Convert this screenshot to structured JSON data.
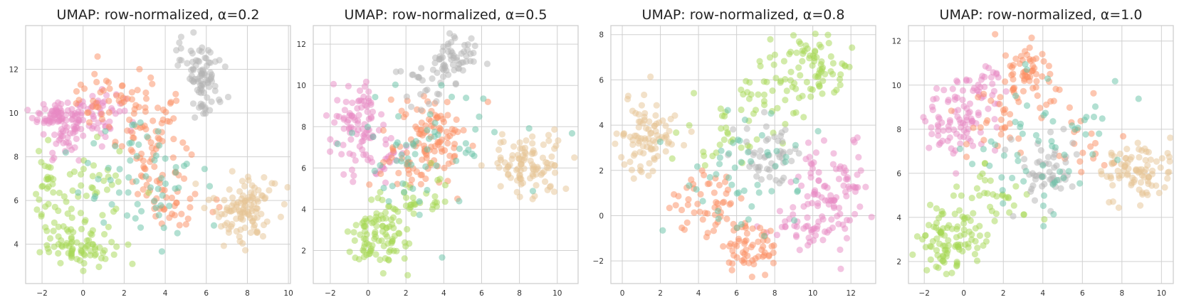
{
  "chart_data": [
    {
      "type": "scatter",
      "title": "UMAP: row-normalized, α=0.2",
      "xlabel": "",
      "ylabel": "",
      "xlim": [
        -2.8,
        10.1
      ],
      "ylim": [
        2.2,
        14.0
      ],
      "xticks": [
        -2,
        0,
        2,
        4,
        6,
        8,
        10
      ],
      "yticks": [
        4,
        6,
        8,
        10,
        12
      ],
      "grid": true,
      "series": [
        {
          "name": "pink",
          "color": "#e78ac3",
          "clusters": [
            {
              "cx": -1.2,
              "cy": 9.9,
              "sx": 0.6,
              "sy": 0.4,
              "n": 70
            },
            {
              "cx": 0.6,
              "cy": 10.0,
              "sx": 0.7,
              "sy": 0.5,
              "n": 55
            },
            {
              "cx": -0.9,
              "cy": 8.8,
              "sx": 0.5,
              "sy": 0.5,
              "n": 30
            }
          ]
        },
        {
          "name": "orange",
          "color": "#fc8d62",
          "clusters": [
            {
              "cx": 3.4,
              "cy": 8.6,
              "sx": 0.9,
              "sy": 1.3,
              "n": 80
            },
            {
              "cx": 1.2,
              "cy": 10.5,
              "sx": 0.9,
              "sy": 0.7,
              "n": 40
            },
            {
              "cx": 4.8,
              "cy": 6.0,
              "sx": 0.8,
              "sy": 0.7,
              "n": 30
            }
          ]
        },
        {
          "name": "green",
          "color": "#a6d854",
          "clusters": [
            {
              "cx": -0.3,
              "cy": 4.0,
              "sx": 0.9,
              "sy": 0.5,
              "n": 80
            },
            {
              "cx": -1.8,
              "cy": 6.2,
              "sx": 0.3,
              "sy": 1.0,
              "n": 25
            },
            {
              "cx": 0.5,
              "cy": 6.5,
              "sx": 1.0,
              "sy": 1.0,
              "n": 40
            }
          ]
        },
        {
          "name": "tan",
          "color": "#e5c494",
          "clusters": [
            {
              "cx": 7.8,
              "cy": 5.7,
              "sx": 0.8,
              "sy": 0.8,
              "n": 110
            }
          ]
        },
        {
          "name": "gray",
          "color": "#b3b3b3",
          "clusters": [
            {
              "cx": 5.6,
              "cy": 12.2,
              "sx": 0.5,
              "sy": 0.7,
              "n": 60
            },
            {
              "cx": 6.0,
              "cy": 10.8,
              "sx": 0.4,
              "sy": 0.6,
              "n": 30
            }
          ]
        },
        {
          "name": "teal",
          "color": "#66c2a5",
          "clusters": [
            {
              "cx": 3.0,
              "cy": 7.0,
              "sx": 1.8,
              "sy": 1.6,
              "n": 60
            }
          ]
        }
      ]
    },
    {
      "type": "scatter",
      "title": "UMAP: row-normalized, α=0.5",
      "xlabel": "",
      "ylabel": "",
      "xlim": [
        -2.9,
        11.1
      ],
      "ylim": [
        0.4,
        12.9
      ],
      "xticks": [
        -2,
        0,
        2,
        4,
        6,
        8,
        10
      ],
      "yticks": [
        2,
        4,
        6,
        8,
        10,
        12
      ],
      "grid": true,
      "series": [
        {
          "name": "pink",
          "color": "#e78ac3",
          "clusters": [
            {
              "cx": -0.5,
              "cy": 8.3,
              "sx": 0.7,
              "sy": 0.8,
              "n": 80
            },
            {
              "cx": 0.5,
              "cy": 6.5,
              "sx": 0.8,
              "sy": 0.6,
              "n": 30
            }
          ]
        },
        {
          "name": "orange",
          "color": "#fc8d62",
          "clusters": [
            {
              "cx": 3.6,
              "cy": 7.7,
              "sx": 0.9,
              "sy": 0.9,
              "n": 80
            },
            {
              "cx": 2.0,
              "cy": 6.4,
              "sx": 1.0,
              "sy": 0.8,
              "n": 40
            }
          ]
        },
        {
          "name": "green",
          "color": "#a6d854",
          "clusters": [
            {
              "cx": 0.5,
              "cy": 2.7,
              "sx": 0.8,
              "sy": 0.9,
              "n": 100
            },
            {
              "cx": 2.8,
              "cy": 4.6,
              "sx": 0.9,
              "sy": 0.5,
              "n": 25
            }
          ]
        },
        {
          "name": "tan",
          "color": "#e5c494",
          "clusters": [
            {
              "cx": 8.5,
              "cy": 6.1,
              "sx": 1.0,
              "sy": 0.7,
              "n": 100
            }
          ]
        },
        {
          "name": "gray",
          "color": "#b3b3b3",
          "clusters": [
            {
              "cx": 4.5,
              "cy": 11.3,
              "sx": 0.6,
              "sy": 0.7,
              "n": 60
            },
            {
              "cx": 2.6,
              "cy": 9.8,
              "sx": 0.7,
              "sy": 0.6,
              "n": 20
            }
          ]
        },
        {
          "name": "teal",
          "color": "#66c2a5",
          "clusters": [
            {
              "cx": 3.2,
              "cy": 6.8,
              "sx": 2.0,
              "sy": 1.4,
              "n": 60
            }
          ]
        }
      ]
    },
    {
      "type": "scatter",
      "title": "UMAP: row-normalized, α=0.8",
      "xlabel": "",
      "ylabel": "",
      "xlim": [
        -0.6,
        13.3
      ],
      "ylim": [
        -3.0,
        8.4
      ],
      "xticks": [
        0,
        2,
        4,
        6,
        8,
        10,
        12
      ],
      "yticks": [
        -2,
        0,
        2,
        4,
        6,
        8
      ],
      "grid": true,
      "series": [
        {
          "name": "pink",
          "color": "#e78ac3",
          "clusters": [
            {
              "cx": 11.2,
              "cy": 1.2,
              "sx": 1.0,
              "sy": 1.1,
              "n": 90
            },
            {
              "cx": 9.5,
              "cy": -0.5,
              "sx": 0.9,
              "sy": 0.5,
              "n": 40
            }
          ]
        },
        {
          "name": "orange",
          "color": "#fc8d62",
          "clusters": [
            {
              "cx": 6.8,
              "cy": -1.4,
              "sx": 0.8,
              "sy": 0.6,
              "n": 60
            },
            {
              "cx": 4.5,
              "cy": 0.6,
              "sx": 0.9,
              "sy": 0.8,
              "n": 50
            }
          ]
        },
        {
          "name": "green",
          "color": "#a6d854",
          "clusters": [
            {
              "cx": 10.2,
              "cy": 6.7,
              "sx": 0.9,
              "sy": 0.8,
              "n": 70
            },
            {
              "cx": 7.8,
              "cy": 5.2,
              "sx": 1.2,
              "sy": 0.9,
              "n": 40
            },
            {
              "cx": 5.0,
              "cy": 3.4,
              "sx": 1.0,
              "sy": 0.8,
              "n": 25
            }
          ]
        },
        {
          "name": "tan",
          "color": "#e5c494",
          "clusters": [
            {
              "cx": 1.3,
              "cy": 3.6,
              "sx": 0.8,
              "sy": 0.8,
              "n": 90
            }
          ]
        },
        {
          "name": "gray",
          "color": "#b3b3b3",
          "clusters": [
            {
              "cx": 7.6,
              "cy": 2.6,
              "sx": 0.7,
              "sy": 0.6,
              "n": 50
            }
          ]
        },
        {
          "name": "teal",
          "color": "#66c2a5",
          "clusters": [
            {
              "cx": 6.5,
              "cy": 2.0,
              "sx": 2.0,
              "sy": 1.4,
              "n": 50
            }
          ]
        }
      ]
    },
    {
      "type": "scatter",
      "title": "UMAP: row-normalized, α=1.0",
      "xlabel": "",
      "ylabel": "",
      "xlim": [
        -2.8,
        10.6
      ],
      "ylim": [
        1.0,
        12.7
      ],
      "xticks": [
        -2,
        0,
        2,
        4,
        6,
        8,
        10
      ],
      "yticks": [
        2,
        4,
        6,
        8,
        10,
        12
      ],
      "grid": true,
      "series": [
        {
          "name": "pink",
          "color": "#e78ac3",
          "clusters": [
            {
              "cx": -0.3,
              "cy": 8.3,
              "sx": 0.8,
              "sy": 0.9,
              "n": 80
            },
            {
              "cx": 1.0,
              "cy": 9.8,
              "sx": 0.7,
              "sy": 0.6,
              "n": 30
            }
          ]
        },
        {
          "name": "orange",
          "color": "#fc8d62",
          "clusters": [
            {
              "cx": 3.3,
              "cy": 10.8,
              "sx": 0.6,
              "sy": 0.7,
              "n": 50
            },
            {
              "cx": 2.2,
              "cy": 8.8,
              "sx": 1.2,
              "sy": 1.0,
              "n": 40
            },
            {
              "cx": 6.0,
              "cy": 7.5,
              "sx": 1.0,
              "sy": 0.8,
              "n": 20
            }
          ]
        },
        {
          "name": "green",
          "color": "#a6d854",
          "clusters": [
            {
              "cx": -0.6,
              "cy": 3.2,
              "sx": 0.9,
              "sy": 0.9,
              "n": 100
            },
            {
              "cx": 1.5,
              "cy": 4.8,
              "sx": 1.0,
              "sy": 0.8,
              "n": 30
            }
          ]
        },
        {
          "name": "tan",
          "color": "#e5c494",
          "clusters": [
            {
              "cx": 8.6,
              "cy": 6.0,
              "sx": 0.9,
              "sy": 0.7,
              "n": 90
            }
          ]
        },
        {
          "name": "gray",
          "color": "#b3b3b3",
          "clusters": [
            {
              "cx": 4.2,
              "cy": 6.2,
              "sx": 0.9,
              "sy": 0.9,
              "n": 55
            }
          ]
        },
        {
          "name": "teal",
          "color": "#66c2a5",
          "clusters": [
            {
              "cx": 3.8,
              "cy": 7.2,
              "sx": 2.0,
              "sy": 1.6,
              "n": 60
            }
          ]
        }
      ]
    }
  ]
}
